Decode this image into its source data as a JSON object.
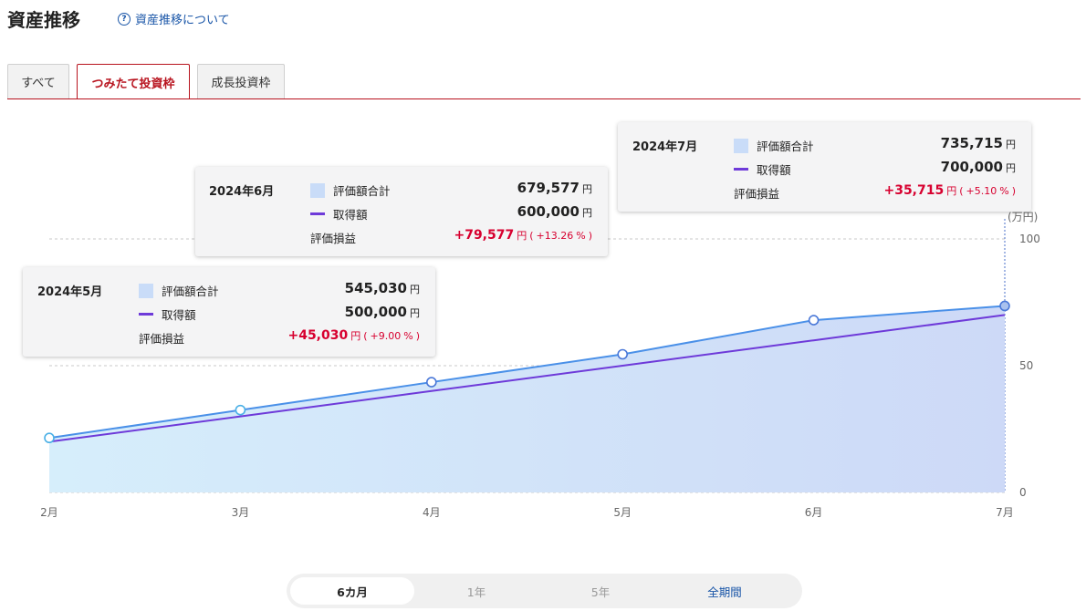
{
  "header": {
    "title": "資産推移",
    "help_link": "資産推移について",
    "help_icon": "question-circle-icon"
  },
  "tabs": [
    {
      "label": "すべて",
      "active": false
    },
    {
      "label": "つみたて投資枠",
      "active": true
    },
    {
      "label": "成長投資枠",
      "active": false
    }
  ],
  "colors": {
    "accent": "#b8131e",
    "valuation_line": "#4a90e8",
    "cost_line": "#6e3ad9",
    "profit": "#d7002f",
    "link": "#1a56a8"
  },
  "chart_data": {
    "type": "area",
    "categories": [
      "2月",
      "3月",
      "4月",
      "5月",
      "6月",
      "7月"
    ],
    "series": [
      {
        "name": "評価額合計",
        "values": [
          21.5,
          32.5,
          43.5,
          54.5,
          67.96,
          73.57
        ]
      },
      {
        "name": "取得額",
        "values": [
          20,
          30,
          40,
          50,
          60,
          70
        ]
      }
    ],
    "y_unit": "(万円)",
    "y_ticks": [
      "0",
      "50",
      "100"
    ],
    "ylim": [
      0,
      100
    ],
    "grid": true,
    "legend": "tooltip",
    "tooltips": [
      {
        "month": "2024年7月",
        "val_label": "評価額合計",
        "val": "735,715",
        "cost_label": "取得額",
        "cost": "700,000",
        "pl_label": "評価損益",
        "pl": "+35,715",
        "pl_pct": "+5.10",
        "yen": "円",
        "pct": "%"
      },
      {
        "month": "2024年6月",
        "val_label": "評価額合計",
        "val": "679,577",
        "cost_label": "取得額",
        "cost": "600,000",
        "pl_label": "評価損益",
        "pl": "+79,577",
        "pl_pct": "+13.26",
        "yen": "円",
        "pct": "%"
      },
      {
        "month": "2024年5月",
        "val_label": "評価額合計",
        "val": "545,030",
        "cost_label": "取得額",
        "cost": "500,000",
        "pl_label": "評価損益",
        "pl": "+45,030",
        "pl_pct": "+9.00",
        "yen": "円",
        "pct": "%"
      }
    ]
  },
  "period_selector": [
    {
      "label": "6カ月",
      "active": true
    },
    {
      "label": "1年",
      "active": false
    },
    {
      "label": "5年",
      "active": false
    },
    {
      "label": "全期間",
      "active": false
    }
  ]
}
